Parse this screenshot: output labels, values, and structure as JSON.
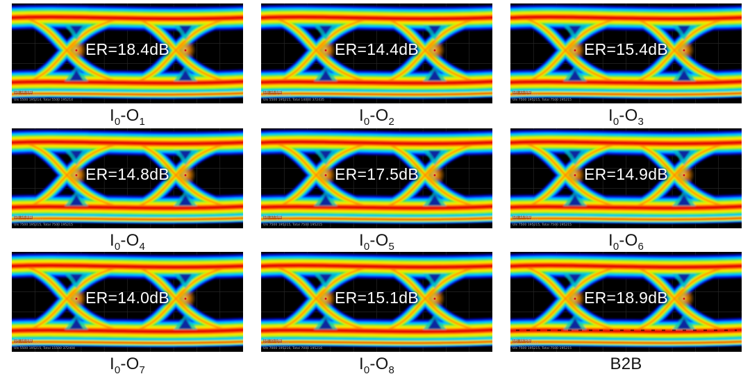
{
  "panels": [
    {
      "id": "I0-O1",
      "er_label": "ER=18.4dB",
      "caption": [
        {
          "t": "I"
        },
        {
          "t": "0",
          "sub": true
        },
        {
          "t": "-O"
        },
        {
          "t": "1",
          "sub": true
        }
      ],
      "info": [
        "ER: 18.4dB",
        "Offset: -0.00776",
        "UIs 5500 195214, Total 5500 195214"
      ]
    },
    {
      "id": "I0-O2",
      "er_label": "ER=14.4dB",
      "caption": [
        {
          "t": "I"
        },
        {
          "t": "0",
          "sub": true
        },
        {
          "t": "-O"
        },
        {
          "t": "2",
          "sub": true
        }
      ],
      "info": [
        "ER: 14.4dB",
        "Offset: -0.001005",
        "UIs 5500 195215, Total 14000 372435"
      ]
    },
    {
      "id": "I0-O3",
      "er_label": "ER=15.4dB",
      "caption": [
        {
          "t": "I"
        },
        {
          "t": "0",
          "sub": true
        },
        {
          "t": "-O"
        },
        {
          "t": "3",
          "sub": true
        }
      ],
      "info": [
        "ER: 15.4dB",
        "Offset: -0.00235",
        "UIs 7500 195215, Total 7500 195215"
      ]
    },
    {
      "id": "I0-O4",
      "er_label": "ER=14.8dB",
      "caption": [
        {
          "t": "I"
        },
        {
          "t": "0",
          "sub": true
        },
        {
          "t": "-O"
        },
        {
          "t": "4",
          "sub": true
        }
      ],
      "info": [
        "ER: 14.8dB",
        "Offset: 4.0004e-11",
        "UIs 7500 195215, Total 7500 195215"
      ]
    },
    {
      "id": "I0-O5",
      "er_label": "ER=17.5dB",
      "caption": [
        {
          "t": "I"
        },
        {
          "t": "0",
          "sub": true
        },
        {
          "t": "-O"
        },
        {
          "t": "5",
          "sub": true
        }
      ],
      "info": [
        "ER: 17.5dB",
        "Offset: -0.00110",
        "UIs 7500 195215, Total 7500 195215"
      ]
    },
    {
      "id": "I0-O6",
      "er_label": "ER=14.9dB",
      "caption": [
        {
          "t": "I"
        },
        {
          "t": "0",
          "sub": true
        },
        {
          "t": "-O"
        },
        {
          "t": "6",
          "sub": true
        }
      ],
      "info": [
        "ER: 14.9dB",
        "Offset: -0.00135",
        "UIs 7500 195215, Total 7500 195215"
      ]
    },
    {
      "id": "I0-O7",
      "er_label": "ER=14.0dB",
      "caption": [
        {
          "t": "I"
        },
        {
          "t": "0",
          "sub": true
        },
        {
          "t": "-O"
        },
        {
          "t": "7",
          "sub": true
        }
      ],
      "info": [
        "ER: 14.0dB",
        "Offset: -2.00312",
        "UIs 5500 195215, Total 15500 372404"
      ]
    },
    {
      "id": "I0-O8",
      "er_label": "ER=15.1dB",
      "caption": [
        {
          "t": "I"
        },
        {
          "t": "0",
          "sub": true
        },
        {
          "t": "-O"
        },
        {
          "t": "8",
          "sub": true
        }
      ],
      "info": [
        "ER: 15.1dB",
        "Offset: -0.00202",
        "UIs 7000 195216, Total 7000 195216"
      ]
    },
    {
      "id": "B2B",
      "er_label": "ER=18.9dB",
      "caption": [
        {
          "t": "B2B"
        }
      ],
      "info": [
        "ER: 18.9dB",
        "Offset: -0.00238",
        "UIs 7500 195215, Total 7500 195215"
      ],
      "dashed": true
    }
  ],
  "chart_data": {
    "type": "heatmap",
    "subtype": "eye-diagram-grid",
    "grid_layout": "3x3",
    "categories": [
      "I0-O1",
      "I0-O2",
      "I0-O3",
      "I0-O4",
      "I0-O5",
      "I0-O6",
      "I0-O7",
      "I0-O8",
      "B2B"
    ],
    "series": [
      {
        "name": "Extinction ratio (dB)",
        "values": [
          18.4,
          14.4,
          15.4,
          14.8,
          17.5,
          14.9,
          14.0,
          15.1,
          18.9
        ]
      }
    ],
    "title": "",
    "xlabel": "",
    "ylabel": "",
    "colormap": "jet",
    "plot_background": "#000000",
    "grid": true
  },
  "colors": {
    "page_bg": "#ffffff",
    "panel_bg": "#000000",
    "grid_line": "#272727",
    "caption_text": "#141414",
    "er_text": "#ffffff",
    "jet_scale": [
      "#000080",
      "#0033ff",
      "#00c8ff",
      "#2ae04e",
      "#c8f000",
      "#ffe800",
      "#ff9000",
      "#ff3300",
      "#dd0000"
    ],
    "crossing_blob": "#ffb43c",
    "crossing_dot": "#d40018",
    "triangle_cyan": "#00c0cc",
    "triangle_navy": "#0a1f9e"
  }
}
